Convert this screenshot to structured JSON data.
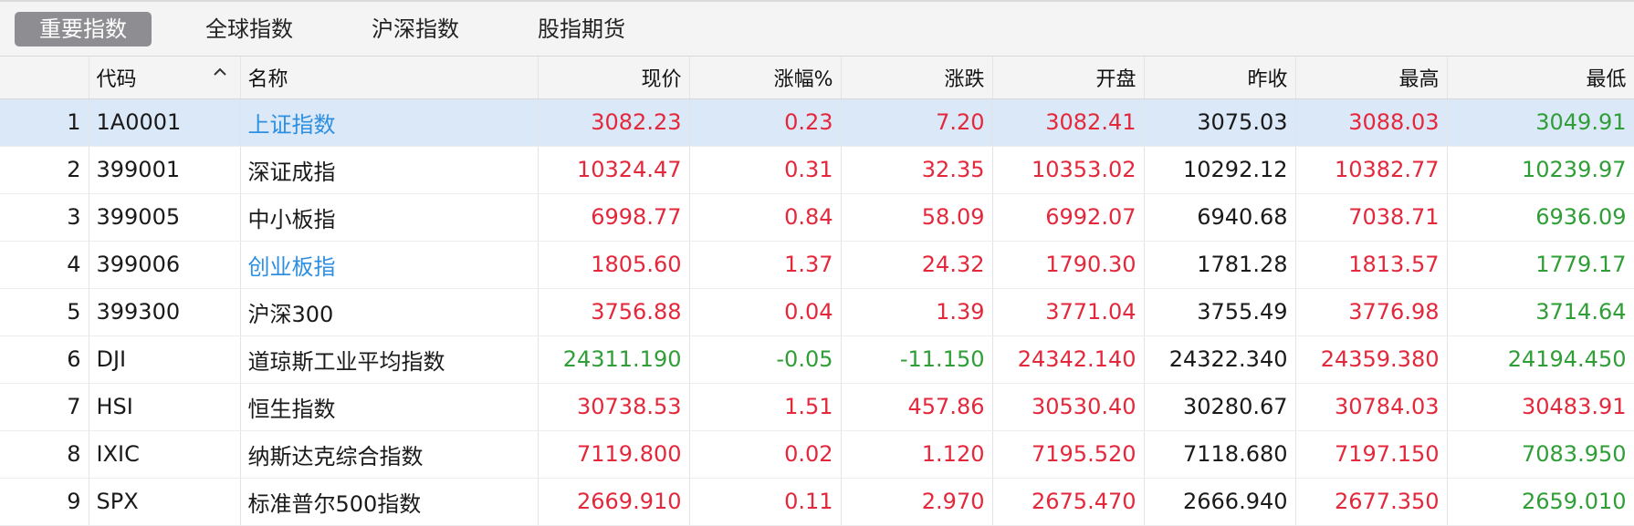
{
  "tabs": [
    {
      "label": "重要指数",
      "active": true
    },
    {
      "label": "全球指数",
      "active": false
    },
    {
      "label": "沪深指数",
      "active": false
    },
    {
      "label": "股指期货",
      "active": false
    }
  ],
  "columns": {
    "index": "",
    "code": "代码",
    "name": "名称",
    "price": "现价",
    "pct": "涨幅%",
    "change": "涨跌",
    "open": "开盘",
    "prev_close": "昨收",
    "high": "最高",
    "low": "最低"
  },
  "colors": {
    "up": "#e4283c",
    "down": "#2f9e36",
    "link": "#2e8fe0",
    "selected_row": "#dbe8f8"
  },
  "rows": [
    {
      "index": "1",
      "code": "1A0001",
      "name": "上证指数",
      "name_link": true,
      "price": "3082.23",
      "pct": "0.23",
      "change": "7.20",
      "open": "3082.41",
      "prev_close": "3075.03",
      "high": "3088.03",
      "low": "3049.91",
      "c_price": "up",
      "c_pct": "up",
      "c_change": "up",
      "c_open": "up",
      "c_high": "up",
      "c_low": "down"
    },
    {
      "index": "2",
      "code": "399001",
      "name": "深证成指",
      "name_link": false,
      "price": "10324.47",
      "pct": "0.31",
      "change": "32.35",
      "open": "10353.02",
      "prev_close": "10292.12",
      "high": "10382.77",
      "low": "10239.97",
      "c_price": "up",
      "c_pct": "up",
      "c_change": "up",
      "c_open": "up",
      "c_high": "up",
      "c_low": "down"
    },
    {
      "index": "3",
      "code": "399005",
      "name": "中小板指",
      "name_link": false,
      "price": "6998.77",
      "pct": "0.84",
      "change": "58.09",
      "open": "6992.07",
      "prev_close": "6940.68",
      "high": "7038.71",
      "low": "6936.09",
      "c_price": "up",
      "c_pct": "up",
      "c_change": "up",
      "c_open": "up",
      "c_high": "up",
      "c_low": "down"
    },
    {
      "index": "4",
      "code": "399006",
      "name": "创业板指",
      "name_link": true,
      "price": "1805.60",
      "pct": "1.37",
      "change": "24.32",
      "open": "1790.30",
      "prev_close": "1781.28",
      "high": "1813.57",
      "low": "1779.17",
      "c_price": "up",
      "c_pct": "up",
      "c_change": "up",
      "c_open": "up",
      "c_high": "up",
      "c_low": "down"
    },
    {
      "index": "5",
      "code": "399300",
      "name": "沪深300",
      "name_link": false,
      "price": "3756.88",
      "pct": "0.04",
      "change": "1.39",
      "open": "3771.04",
      "prev_close": "3755.49",
      "high": "3776.98",
      "low": "3714.64",
      "c_price": "up",
      "c_pct": "up",
      "c_change": "up",
      "c_open": "up",
      "c_high": "up",
      "c_low": "down"
    },
    {
      "index": "6",
      "code": "DJI",
      "name": "道琼斯工业平均指数",
      "name_link": false,
      "price": "24311.190",
      "pct": "-0.05",
      "change": "-11.150",
      "open": "24342.140",
      "prev_close": "24322.340",
      "high": "24359.380",
      "low": "24194.450",
      "c_price": "down",
      "c_pct": "down",
      "c_change": "down",
      "c_open": "up",
      "c_high": "up",
      "c_low": "down"
    },
    {
      "index": "7",
      "code": "HSI",
      "name": "恒生指数",
      "name_link": false,
      "price": "30738.53",
      "pct": "1.51",
      "change": "457.86",
      "open": "30530.40",
      "prev_close": "30280.67",
      "high": "30784.03",
      "low": "30483.91",
      "c_price": "up",
      "c_pct": "up",
      "c_change": "up",
      "c_open": "up",
      "c_high": "up",
      "c_low": "up"
    },
    {
      "index": "8",
      "code": "IXIC",
      "name": "纳斯达克综合指数",
      "name_link": false,
      "price": "7119.800",
      "pct": "0.02",
      "change": "1.120",
      "open": "7195.520",
      "prev_close": "7118.680",
      "high": "7197.150",
      "low": "7083.950",
      "c_price": "up",
      "c_pct": "up",
      "c_change": "up",
      "c_open": "up",
      "c_high": "up",
      "c_low": "down"
    },
    {
      "index": "9",
      "code": "SPX",
      "name": "标准普尔500指数",
      "name_link": false,
      "price": "2669.910",
      "pct": "0.11",
      "change": "2.970",
      "open": "2675.470",
      "prev_close": "2666.940",
      "high": "2677.350",
      "low": "2659.010",
      "c_price": "up",
      "c_pct": "up",
      "c_change": "up",
      "c_open": "up",
      "c_high": "up",
      "c_low": "down"
    }
  ]
}
